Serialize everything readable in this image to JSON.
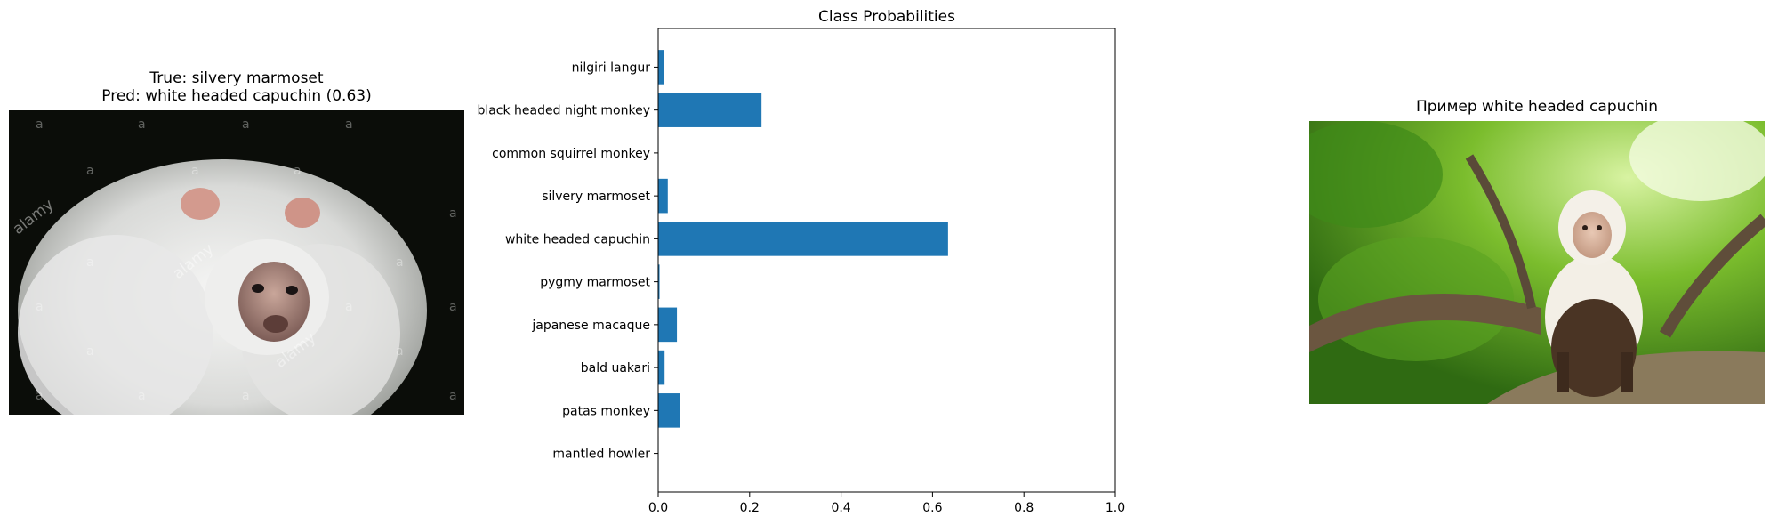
{
  "left_panel": {
    "true_label": "True: silvery marmoset",
    "pred_label": "Pred: white headed capuchin (0.63)",
    "watermark": "alamy"
  },
  "right_panel": {
    "title": "Пример white headed capuchin"
  },
  "chart_data": {
    "type": "bar",
    "orientation": "horizontal",
    "title": "Class Probabilities",
    "xlabel": "",
    "ylabel": "",
    "xlim": [
      0,
      1.0
    ],
    "xticks": [
      "0.0",
      "0.2",
      "0.4",
      "0.6",
      "0.8",
      "1.0"
    ],
    "categories": [
      "nilgiri langur",
      "black headed night monkey",
      "common squirrel monkey",
      "silvery marmoset",
      "white headed capuchin",
      "pygmy marmoset",
      "japanese macaque",
      "bald uakari",
      "patas monkey",
      "mantled howler"
    ],
    "values": [
      0.013,
      0.226,
      0.001,
      0.021,
      0.634,
      0.003,
      0.041,
      0.014,
      0.048,
      0.001
    ],
    "bar_color": "#1f77b4",
    "grid": false
  }
}
